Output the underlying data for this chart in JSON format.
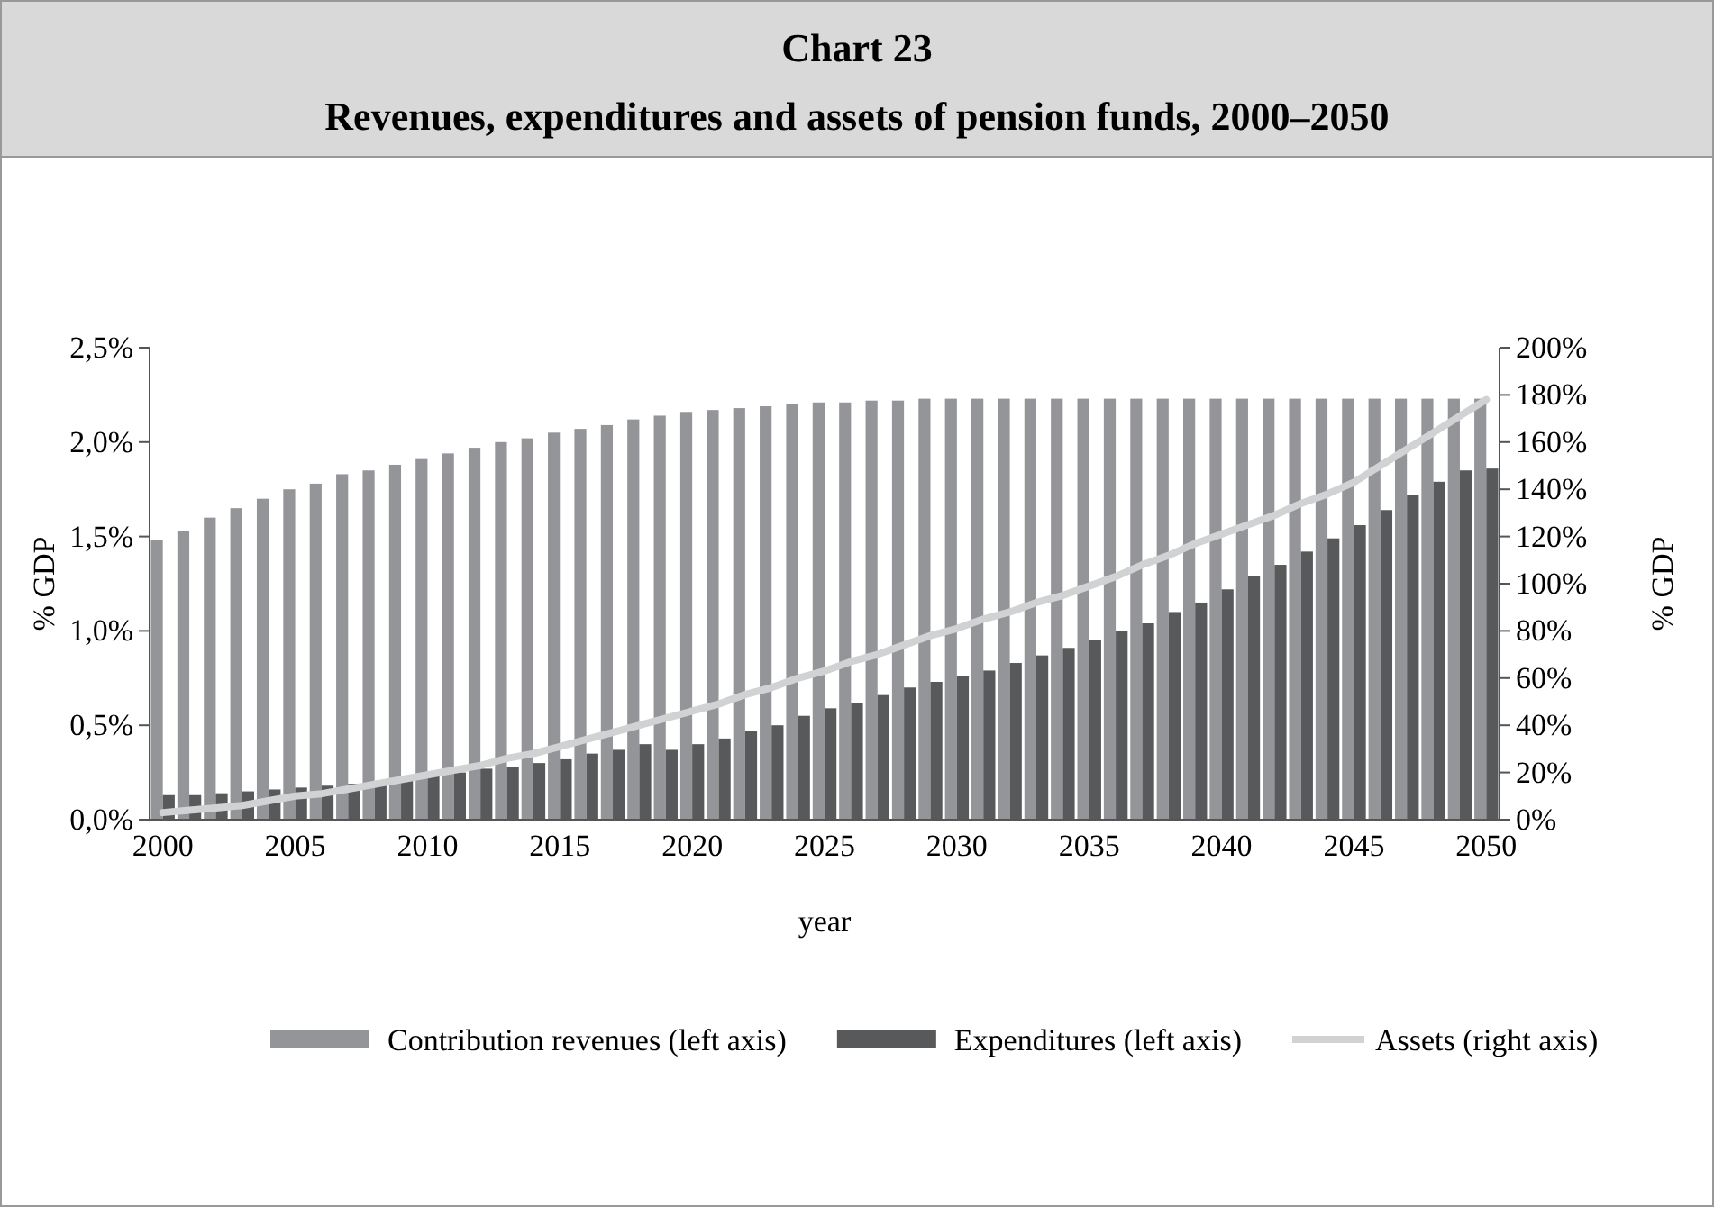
{
  "chart_data": {
    "type": "bar",
    "title": "Chart 23",
    "subtitle": "Revenues, expenditures and assets of pension funds, 2000–2050",
    "xlabel": "year",
    "ylabel": "% GDP",
    "y2label": "% GDP",
    "categories": [
      "2000",
      null,
      null,
      null,
      null,
      "2005",
      null,
      null,
      null,
      null,
      "2010",
      null,
      null,
      null,
      null,
      "2015",
      null,
      null,
      null,
      null,
      "2020",
      null,
      null,
      null,
      null,
      "2025",
      null,
      null,
      null,
      null,
      "2030",
      null,
      null,
      null,
      null,
      "2035",
      null,
      null,
      null,
      null,
      "2040",
      null,
      null,
      null,
      null,
      "2045",
      null,
      null,
      null,
      null,
      "2050"
    ],
    "series": [
      {
        "name": "Contribution revenues (left axis)",
        "color": "#939598",
        "values": [
          1.48,
          1.53,
          1.6,
          1.65,
          1.7,
          1.75,
          1.78,
          1.83,
          1.85,
          1.88,
          1.91,
          1.94,
          1.97,
          2.0,
          2.02,
          2.05,
          2.07,
          2.09,
          2.12,
          2.14,
          2.16,
          2.17,
          2.18,
          2.19,
          2.2,
          2.21,
          2.21,
          2.22,
          2.22,
          2.23,
          2.23,
          2.23,
          2.23,
          2.23,
          2.23,
          2.23,
          2.23,
          2.23,
          2.23,
          2.23,
          2.23,
          2.23,
          2.23,
          2.23,
          2.23,
          2.23,
          2.23,
          2.23,
          2.23,
          2.23,
          2.23
        ]
      },
      {
        "name": "Expenditures (left axis)",
        "color": "#58595b",
        "values": [
          0.13,
          0.13,
          0.14,
          0.15,
          0.16,
          0.17,
          0.18,
          0.19,
          0.2,
          0.21,
          0.23,
          0.25,
          0.27,
          0.28,
          0.3,
          0.32,
          0.35,
          0.37,
          0.4,
          0.37,
          0.4,
          0.43,
          0.47,
          0.5,
          0.55,
          0.59,
          0.62,
          0.66,
          0.7,
          0.73,
          0.76,
          0.79,
          0.83,
          0.87,
          0.91,
          0.95,
          1.0,
          1.04,
          1.1,
          1.15,
          1.22,
          1.29,
          1.35,
          1.42,
          1.49,
          1.56,
          1.64,
          1.72,
          1.79,
          1.85,
          1.86
        ]
      },
      {
        "name": "Assets (right axis)",
        "type": "line",
        "axis": "y2",
        "color": "#d1d2d3",
        "values": [
          3,
          4,
          5,
          6,
          8,
          10,
          11,
          13,
          15,
          17,
          19,
          21,
          23,
          26,
          28,
          31,
          34,
          37,
          40,
          43,
          46,
          49,
          53,
          56,
          60,
          63,
          67,
          70,
          74,
          78,
          81,
          85,
          88,
          92,
          95,
          99,
          103,
          108,
          112,
          117,
          121,
          125,
          129,
          134,
          138,
          143,
          150,
          157,
          164,
          171,
          178
        ]
      }
    ],
    "ylim": [
      0,
      2.5
    ],
    "yticks": [
      {
        "value": 0,
        "label": "0,0%"
      },
      {
        "value": 0.5,
        "label": "0,5%"
      },
      {
        "value": 1,
        "label": "1,0%"
      },
      {
        "value": 1.5,
        "label": "1,5%"
      },
      {
        "value": 2,
        "label": "2,0%"
      },
      {
        "value": 2.5,
        "label": "2,5%"
      }
    ],
    "y2lim": [
      0,
      200
    ],
    "y2ticks": [
      {
        "value": 0,
        "label": "0%"
      },
      {
        "value": 20,
        "label": "20%"
      },
      {
        "value": 40,
        "label": "40%"
      },
      {
        "value": 60,
        "label": "60%"
      },
      {
        "value": 80,
        "label": "80%"
      },
      {
        "value": 100,
        "label": "100%"
      },
      {
        "value": 120,
        "label": "120%"
      },
      {
        "value": 140,
        "label": "140%"
      },
      {
        "value": 160,
        "label": "160%"
      },
      {
        "value": 180,
        "label": "180%"
      },
      {
        "value": 200,
        "label": "200%"
      }
    ],
    "legend": "bottom",
    "grid": false
  }
}
